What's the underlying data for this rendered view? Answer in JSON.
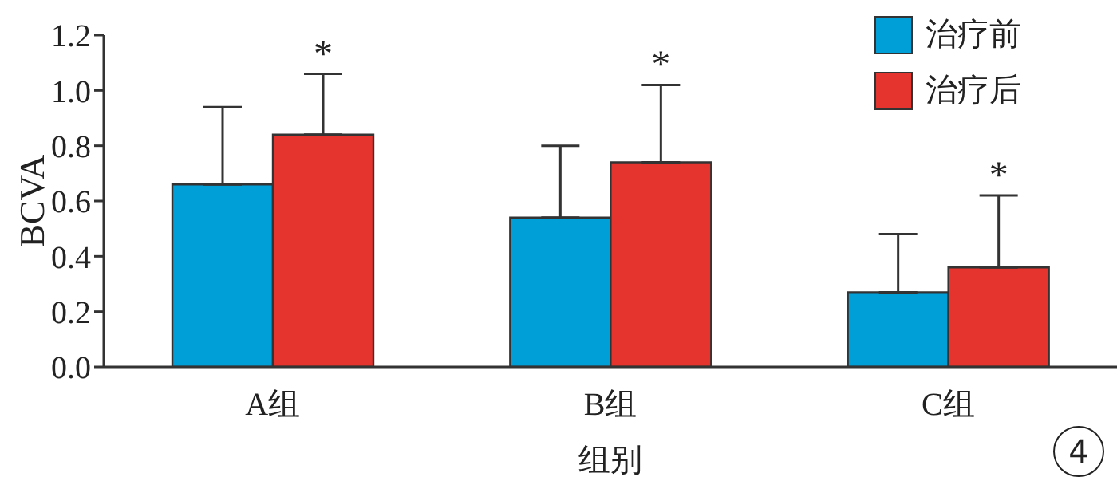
{
  "chart_data": {
    "type": "bar",
    "categories": [
      "A组",
      "B组",
      "C组"
    ],
    "xlabel": "组别",
    "ylabel": "BCVA",
    "series": [
      {
        "name": "治疗前",
        "color": "#009fd8",
        "values": [
          0.66,
          0.54,
          0.27
        ],
        "errors": [
          [
            0.66,
            0.94
          ],
          [
            0.54,
            0.8
          ],
          [
            0.27,
            0.48
          ]
        ]
      },
      {
        "name": "治疗后",
        "color": "#e5332d",
        "values": [
          0.84,
          0.74,
          0.36
        ],
        "errors": [
          [
            0.84,
            1.06
          ],
          [
            0.74,
            1.02
          ],
          [
            0.36,
            0.62
          ]
        ]
      }
    ],
    "ylim": [
      0,
      1.2
    ],
    "yticks": [
      {
        "value": 0,
        "label": "0.0"
      },
      0.2,
      0.4,
      0.6,
      0.8,
      {
        "value": 1,
        "label": "1.0"
      },
      1.2
    ],
    "legend": "top right",
    "grid": false,
    "annotations": [
      "*",
      "*",
      "*",
      "4"
    ]
  }
}
